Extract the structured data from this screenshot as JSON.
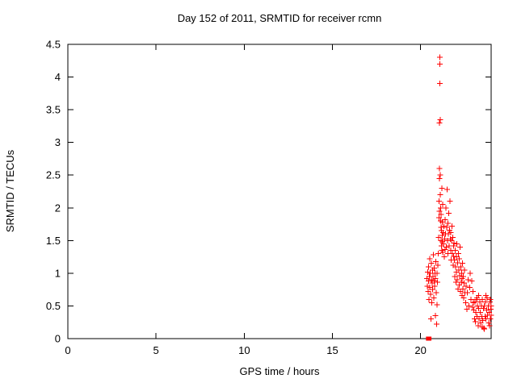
{
  "chart_data": {
    "type": "scatter",
    "title": "Day 152 of 2011, SRMTID for receiver rcmn",
    "xlabel": "GPS time / hours",
    "ylabel": "SRMTID / TECUs",
    "xlim": [
      0,
      24
    ],
    "ylim": [
      0,
      4.5
    ],
    "x_ticks": [
      0,
      5,
      10,
      15,
      20
    ],
    "y_ticks": [
      0,
      0.5,
      1,
      1.5,
      2,
      2.5,
      3,
      3.5,
      4,
      4.5
    ],
    "grid": false,
    "legend": "none",
    "marker": "plus",
    "marker_color": "#ff0000",
    "points": [
      [
        20.35,
        0.92
      ],
      [
        20.38,
        0.8
      ],
      [
        20.4,
        1.02
      ],
      [
        20.42,
        0.72
      ],
      [
        20.44,
        0.88
      ],
      [
        20.46,
        1.1
      ],
      [
        20.47,
        0.6
      ],
      [
        20.5,
        0.95
      ],
      [
        20.51,
        1.22
      ],
      [
        20.53,
        0.78
      ],
      [
        20.55,
        1.0
      ],
      [
        20.57,
        0.68
      ],
      [
        20.58,
        0.3
      ],
      [
        20.6,
        0.9
      ],
      [
        20.62,
        1.15
      ],
      [
        20.63,
        0.55
      ],
      [
        20.65,
        0.85
      ],
      [
        20.67,
        1.05
      ],
      [
        20.69,
        0.75
      ],
      [
        20.7,
        0.95
      ],
      [
        20.72,
        1.28
      ],
      [
        20.74,
        0.62
      ],
      [
        20.76,
        0.88
      ],
      [
        20.78,
        1.08
      ],
      [
        20.8,
        0.8
      ],
      [
        20.82,
        1.0
      ],
      [
        20.84,
        0.35
      ],
      [
        20.85,
        0.92
      ],
      [
        20.87,
        1.18
      ],
      [
        20.89,
        0.7
      ],
      [
        20.9,
        0.22
      ],
      [
        20.92,
        1.0
      ],
      [
        20.94,
        0.52
      ],
      [
        20.96,
        0.86
      ],
      [
        20.98,
        1.12
      ],
      [
        21.0,
        1.3
      ],
      [
        21.02,
        1.55
      ],
      [
        21.04,
        1.85
      ],
      [
        21.05,
        2.1
      ],
      [
        21.06,
        1.95
      ],
      [
        21.07,
        2.45
      ],
      [
        21.08,
        2.6
      ],
      [
        21.08,
        3.3
      ],
      [
        21.09,
        3.9
      ],
      [
        21.1,
        4.2
      ],
      [
        21.1,
        4.3
      ],
      [
        21.11,
        3.35
      ],
      [
        21.12,
        2.5
      ],
      [
        21.12,
        2.2
      ],
      [
        21.13,
        1.8
      ],
      [
        21.14,
        2.0
      ],
      [
        21.15,
        1.7
      ],
      [
        21.16,
        1.5
      ],
      [
        21.17,
        1.9
      ],
      [
        21.18,
        1.42
      ],
      [
        21.19,
        1.65
      ],
      [
        21.2,
        2.3
      ],
      [
        21.21,
        1.35
      ],
      [
        21.22,
        1.58
      ],
      [
        21.23,
        1.78
      ],
      [
        21.24,
        1.48
      ],
      [
        21.25,
        2.05
      ],
      [
        21.26,
        1.32
      ],
      [
        21.28,
        1.62
      ],
      [
        21.3,
        1.45
      ],
      [
        21.32,
        1.72
      ],
      [
        21.34,
        1.25
      ],
      [
        21.36,
        1.52
      ],
      [
        21.38,
        1.82
      ],
      [
        21.4,
        1.36
      ],
      [
        21.42,
        1.6
      ],
      [
        21.44,
        2.0
      ],
      [
        21.46,
        1.4
      ],
      [
        21.48,
        1.7
      ],
      [
        21.5,
        2.28
      ],
      [
        21.52,
        1.5
      ],
      [
        21.54,
        1.76
      ],
      [
        21.56,
        1.3
      ],
      [
        21.58,
        1.6
      ],
      [
        21.6,
        1.92
      ],
      [
        21.62,
        1.42
      ],
      [
        21.64,
        1.66
      ],
      [
        21.66,
        2.1
      ],
      [
        21.68,
        1.52
      ],
      [
        21.7,
        1.35
      ],
      [
        21.72,
        1.62
      ],
      [
        21.74,
        1.2
      ],
      [
        21.76,
        1.5
      ],
      [
        21.78,
        1.72
      ],
      [
        21.8,
        1.3
      ],
      [
        21.82,
        1.55
      ],
      [
        21.84,
        1.12
      ],
      [
        21.86,
        1.42
      ],
      [
        21.88,
        1.26
      ],
      [
        21.9,
        1.46
      ],
      [
        21.92,
        1.2
      ],
      [
        21.94,
        0.95
      ],
      [
        21.96,
        1.35
      ],
      [
        21.98,
        1.1
      ],
      [
        22.0,
        0.86
      ],
      [
        22.02,
        1.25
      ],
      [
        22.04,
        1.02
      ],
      [
        22.06,
        1.45
      ],
      [
        22.08,
        0.9
      ],
      [
        22.1,
        1.16
      ],
      [
        22.12,
        0.76
      ],
      [
        22.14,
        1.3
      ],
      [
        22.16,
        1.05
      ],
      [
        22.18,
        0.82
      ],
      [
        22.2,
        1.22
      ],
      [
        22.22,
        0.96
      ],
      [
        22.24,
        1.4
      ],
      [
        22.26,
        0.72
      ],
      [
        22.28,
        1.1
      ],
      [
        22.3,
        0.86
      ],
      [
        22.32,
        1.0
      ],
      [
        22.34,
        0.66
      ],
      [
        22.36,
        0.92
      ],
      [
        22.38,
        1.15
      ],
      [
        22.4,
        0.76
      ],
      [
        22.42,
        0.95
      ],
      [
        22.44,
        0.62
      ],
      [
        22.46,
        0.85
      ],
      [
        22.48,
        1.05
      ],
      [
        22.5,
        0.7
      ],
      [
        22.55,
        0.55
      ],
      [
        22.58,
        0.8
      ],
      [
        22.62,
        0.45
      ],
      [
        22.66,
        0.7
      ],
      [
        22.7,
        0.9
      ],
      [
        22.74,
        0.5
      ],
      [
        22.78,
        0.78
      ],
      [
        22.82,
        1.0
      ],
      [
        22.86,
        0.6
      ],
      [
        22.9,
        0.88
      ],
      [
        22.94,
        0.48
      ],
      [
        22.98,
        0.72
      ],
      [
        23.0,
        0.55
      ],
      [
        23.02,
        0.44
      ],
      [
        23.05,
        0.3
      ],
      [
        23.08,
        0.56
      ],
      [
        23.11,
        0.26
      ],
      [
        23.14,
        0.4
      ],
      [
        23.17,
        0.6
      ],
      [
        23.2,
        0.34
      ],
      [
        23.23,
        0.5
      ],
      [
        23.26,
        0.2
      ],
      [
        23.29,
        0.46
      ],
      [
        23.32,
        0.3
      ],
      [
        23.35,
        0.56
      ],
      [
        23.38,
        0.4
      ],
      [
        23.41,
        0.24
      ],
      [
        23.44,
        0.5
      ],
      [
        23.47,
        0.34
      ],
      [
        23.5,
        0.6
      ],
      [
        23.53,
        0.28
      ],
      [
        23.56,
        0.46
      ],
      [
        23.59,
        0.16
      ],
      [
        23.62,
        0.5
      ],
      [
        23.65,
        0.34
      ],
      [
        23.68,
        0.56
      ],
      [
        23.71,
        0.3
      ],
      [
        23.74,
        0.44
      ],
      [
        23.77,
        0.62
      ],
      [
        23.8,
        0.36
      ],
      [
        23.83,
        0.5
      ],
      [
        23.86,
        0.24
      ],
      [
        23.89,
        0.4
      ],
      [
        23.92,
        0.56
      ],
      [
        23.95,
        0.3
      ],
      [
        23.97,
        0.45
      ],
      [
        24.0,
        0.36
      ],
      [
        23.3,
        0.66
      ],
      [
        23.7,
        0.66
      ],
      [
        23.95,
        0.6
      ],
      [
        24.0,
        0.5
      ],
      [
        23.6,
        0.15
      ],
      [
        23.9,
        0.2
      ],
      [
        23.2,
        0.62
      ],
      [
        23.5,
        0.18
      ]
    ],
    "zero_markers": [
      [
        20.42,
        0
      ],
      [
        20.5,
        0
      ]
    ]
  }
}
